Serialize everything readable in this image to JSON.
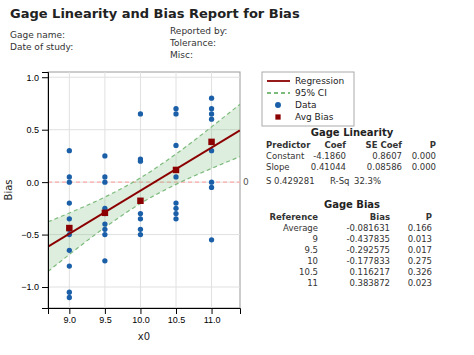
{
  "chart_data": {
    "type": "scatter",
    "title": "Gage Linearity and Bias Report for Bias",
    "header_fields": [
      "Gage name:",
      "Date of study:",
      "Reported by:",
      "Tolerance:",
      "Misc:"
    ],
    "xlabel": "x0",
    "ylabel": "Bias",
    "xlim": [
      8.7,
      11.4
    ],
    "ylim": [
      -1.2,
      1.05
    ],
    "xticks": [
      {
        "value": 9.0,
        "label": "9.0"
      },
      9.5,
      {
        "value": 10.0,
        "label": "10.0"
      },
      10.5,
      {
        "value": 11.0,
        "label": "11.0"
      }
    ],
    "yticks": [
      {
        "value": -1.0,
        "label": "−1.0"
      },
      {
        "value": -0.5,
        "label": "−0.5"
      },
      {
        "value": 0.0,
        "label": "0.0"
      },
      {
        "value": 0.5,
        "label": "0.5"
      },
      {
        "value": 1.0,
        "label": "1.0"
      }
    ],
    "grid": true,
    "legend": "right",
    "series": [
      {
        "name": "Regression",
        "type": "line",
        "color": "#8b0000",
        "line_style": "solid",
        "x": [
          8.7,
          11.4
        ],
        "values": [
          -0.615172,
          0.493016
        ]
      },
      {
        "name": "95% CI",
        "type": "band",
        "color": "#7dbb7d",
        "line_style": "dashed",
        "x": [
          8.7,
          9.0,
          9.5,
          10.0,
          10.5,
          11.0,
          11.4
        ],
        "lower": [
          -0.851763,
          -0.690034,
          -0.431623,
          -0.203626,
          -0.021183,
          0.130846,
          0.242936
        ],
        "upper": [
          -0.378581,
          -0.294046,
          -0.142017,
          0.040426,
          0.268423,
          0.526834,
          0.743096
        ]
      },
      {
        "name": "Data",
        "type": "scatter",
        "color": "#1a5fa8",
        "marker": "circle",
        "x": [
          9.0,
          9.0,
          9.0,
          9.0,
          9.0,
          9.0,
          9.0,
          9.0,
          9.0,
          9.0,
          9.0,
          9.5,
          9.5,
          9.5,
          9.5,
          9.5,
          9.5,
          9.5,
          9.5,
          9.5,
          10.0,
          10.0,
          10.0,
          10.0,
          10.0,
          10.0,
          10.0,
          10.5,
          10.5,
          10.5,
          10.5,
          10.5,
          10.5,
          10.5,
          10.5,
          11.0,
          11.0,
          11.0,
          11.0,
          11.0,
          11.0,
          11.0,
          11.0
        ],
        "values": [
          -1.1,
          -1.05,
          -0.8,
          -0.65,
          -0.5,
          -0.45,
          -0.35,
          -0.2,
          0.0,
          0.05,
          0.3,
          -0.75,
          -0.5,
          -0.45,
          -0.4,
          -0.3,
          -0.25,
          0.0,
          0.05,
          0.25,
          -0.5,
          -0.45,
          -0.35,
          -0.3,
          0.2,
          0.22,
          0.65,
          -0.35,
          -0.3,
          -0.25,
          -0.2,
          0.05,
          0.35,
          0.65,
          0.7,
          -0.55,
          -0.05,
          0.0,
          0.3,
          0.6,
          0.65,
          0.7,
          0.8
        ]
      },
      {
        "name": "Avg Bias",
        "type": "scatter",
        "color": "#8b0000",
        "marker": "square",
        "x": [
          9.0,
          9.5,
          10.0,
          10.5,
          11.0
        ],
        "values": [
          -0.437835,
          -0.292575,
          -0.177833,
          0.116217,
          0.383872
        ]
      }
    ],
    "reference_lines": [
      {
        "y": 0,
        "label": "0",
        "color": "#ffaaaa",
        "line_style": "dashed"
      }
    ],
    "tables": [
      {
        "title": "Gage Linearity",
        "headers": [
          "Predictor",
          "Coef",
          "SE Coef",
          "P"
        ],
        "rows": [
          [
            "Constant",
            "-4.1860",
            "0.8607",
            "0.000"
          ],
          [
            "Slope",
            "0.41044",
            "0.08586",
            "0.000"
          ]
        ],
        "stats": [
          {
            "label": "S",
            "value": "0.429281"
          },
          {
            "label": "R-Sq",
            "value": "32.3%"
          }
        ]
      },
      {
        "title": "Gage Bias",
        "headers": [
          "Reference",
          "Bias",
          "P"
        ],
        "rows": [
          [
            "Average",
            "-0.081631",
            "0.166"
          ],
          [
            "9",
            "-0.437835",
            "0.013"
          ],
          [
            "9.5",
            "-0.292575",
            "0.017"
          ],
          [
            "10",
            "-0.177833",
            "0.275"
          ],
          [
            "10.5",
            "0.116217",
            "0.326"
          ],
          [
            "11",
            "0.383872",
            "0.023"
          ]
        ]
      }
    ]
  }
}
